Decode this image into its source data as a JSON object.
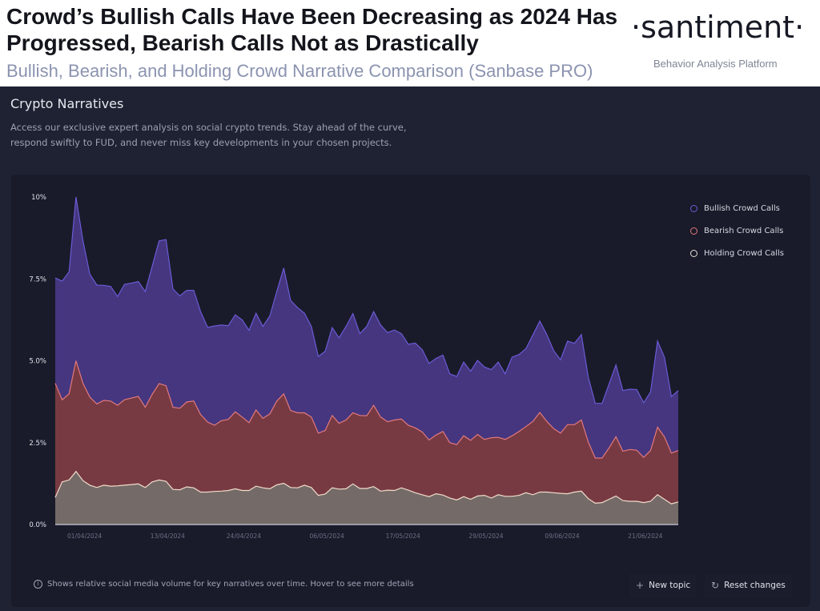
{
  "header": {
    "title": "Crowd’s Bullish Calls Have Been Decreasing as 2024 Has Progressed, Bearish Calls Not as Drastically",
    "subtitle": "Bullish, Bearish, and Holding Crowd Narrative Comparison (Sanbase PRO)",
    "logo": "·santiment·",
    "tagline": "Behavior Analysis Platform"
  },
  "section": {
    "title": "Crypto Narratives",
    "description": "Access our exclusive expert analysis on social crypto trends. Stay ahead of the curve, respond swiftly to FUD, and never miss key developments in your chosen projects."
  },
  "footer": {
    "note": "Shows relative social media volume for key narratives over time. Hover to see more details",
    "info_icon": "info-icon",
    "new_topic": "New topic",
    "reset": "Reset changes"
  },
  "chart_data": {
    "type": "area",
    "start_date": "2024-03-28",
    "interval": "1 day",
    "ylim": [
      0,
      10
    ],
    "yticks": [
      "0.0%",
      "2.5%",
      "5.0%",
      "7.5%",
      "10%"
    ],
    "xticks": [
      "01/04/2024",
      "13/04/2024",
      "24/04/2024",
      "06/05/2024",
      "17/05/2024",
      "29/05/2024",
      "09/06/2024",
      "21/06/2024"
    ],
    "legend_position": "top-right",
    "grid": false,
    "series": [
      {
        "name": "Bullish Crowd Calls",
        "fill": "#45367f",
        "stroke": "#6b5bd6",
        "values": [
          7.53,
          7.43,
          7.72,
          10.0,
          8.66,
          7.64,
          7.31,
          7.3,
          7.27,
          6.96,
          7.33,
          7.37,
          7.42,
          7.11,
          7.88,
          8.66,
          8.7,
          7.19,
          6.98,
          7.15,
          7.15,
          6.5,
          6.02,
          6.06,
          6.09,
          6.07,
          6.4,
          6.25,
          5.93,
          6.45,
          6.05,
          6.37,
          7.11,
          7.83,
          6.84,
          6.62,
          6.45,
          6.05,
          5.13,
          5.29,
          6.01,
          5.7,
          6.05,
          6.44,
          5.83,
          6.05,
          6.5,
          6.09,
          5.86,
          5.94,
          5.83,
          5.5,
          5.54,
          5.34,
          4.92,
          5.07,
          5.17,
          4.6,
          4.52,
          4.96,
          4.68,
          5.01,
          4.81,
          4.73,
          4.96,
          4.6,
          5.11,
          5.19,
          5.37,
          5.79,
          6.21,
          5.8,
          5.31,
          5.03,
          5.6,
          5.53,
          5.8,
          4.5,
          3.7,
          3.7,
          4.29,
          4.87,
          4.09,
          4.13,
          4.12,
          3.72,
          4.05,
          5.6,
          5.11,
          3.9,
          4.09
        ]
      },
      {
        "name": "Bearish Crowd Calls",
        "fill": "#773a42",
        "stroke": "#e3787c",
        "values": [
          4.31,
          3.81,
          3.99,
          5.0,
          4.31,
          3.89,
          3.68,
          3.79,
          3.77,
          3.64,
          3.81,
          3.86,
          3.91,
          3.58,
          3.97,
          4.3,
          4.24,
          3.58,
          3.55,
          3.74,
          3.77,
          3.36,
          3.13,
          3.03,
          3.17,
          3.21,
          3.44,
          3.28,
          3.11,
          3.5,
          3.24,
          3.38,
          3.77,
          3.99,
          3.48,
          3.41,
          3.41,
          3.28,
          2.79,
          2.87,
          3.33,
          3.09,
          3.19,
          3.41,
          3.33,
          3.32,
          3.64,
          3.28,
          3.14,
          3.19,
          3.22,
          3.03,
          2.95,
          2.83,
          2.58,
          2.73,
          2.84,
          2.5,
          2.44,
          2.71,
          2.57,
          2.75,
          2.6,
          2.65,
          2.66,
          2.6,
          2.71,
          2.84,
          2.99,
          3.15,
          3.42,
          3.15,
          2.93,
          2.79,
          3.05,
          3.05,
          3.19,
          2.52,
          2.03,
          2.03,
          2.34,
          2.68,
          2.24,
          2.29,
          2.27,
          2.05,
          2.26,
          2.97,
          2.68,
          2.18,
          2.26
        ]
      },
      {
        "name": "Holding Crowd Calls",
        "fill": "#746a67",
        "stroke": "#f2dccb",
        "values": [
          0.83,
          1.3,
          1.36,
          1.62,
          1.34,
          1.2,
          1.13,
          1.2,
          1.17,
          1.18,
          1.2,
          1.22,
          1.24,
          1.13,
          1.3,
          1.36,
          1.32,
          1.07,
          1.06,
          1.15,
          1.12,
          0.99,
          0.99,
          1.01,
          1.02,
          1.04,
          1.09,
          1.04,
          1.04,
          1.17,
          1.12,
          1.09,
          1.21,
          1.26,
          1.13,
          1.12,
          1.2,
          1.13,
          0.89,
          0.93,
          1.12,
          1.08,
          1.09,
          1.24,
          1.1,
          1.1,
          1.16,
          1.02,
          1.05,
          1.04,
          1.12,
          1.05,
          0.97,
          0.91,
          0.85,
          0.94,
          0.9,
          0.81,
          0.75,
          0.85,
          0.77,
          0.87,
          0.89,
          0.81,
          0.91,
          0.86,
          0.86,
          0.89,
          0.97,
          0.91,
          0.99,
          0.99,
          0.97,
          0.95,
          0.94,
          0.99,
          1.02,
          0.79,
          0.65,
          0.67,
          0.77,
          0.87,
          0.73,
          0.71,
          0.71,
          0.67,
          0.71,
          0.91,
          0.77,
          0.63,
          0.69
        ]
      }
    ]
  }
}
